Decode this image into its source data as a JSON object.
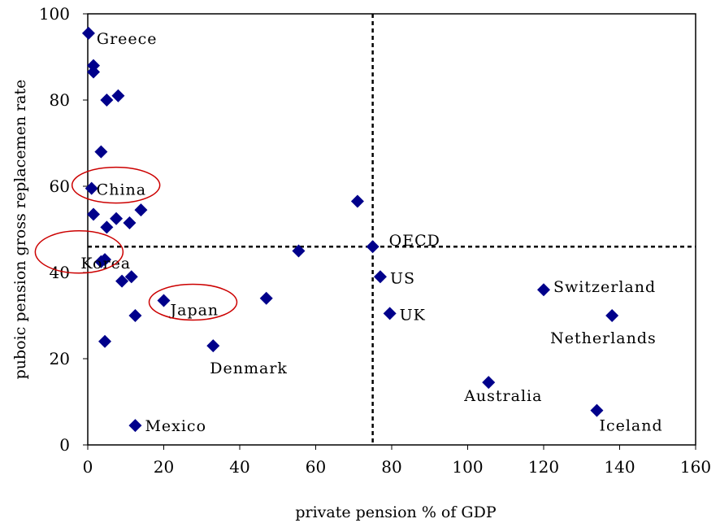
{
  "chart_data": {
    "type": "scatter",
    "title": "",
    "xlabel": "private pension % of GDP",
    "ylabel": "puboic pension gross replacemen rate",
    "xlim": [
      0,
      160
    ],
    "ylim": [
      0,
      100
    ],
    "xticks": [
      0,
      20,
      40,
      60,
      80,
      100,
      120,
      140,
      160
    ],
    "yticks": [
      0,
      20,
      40,
      60,
      80,
      100
    ],
    "grid": false,
    "reference_lines": {
      "x": 75,
      "y": 46,
      "style": "dashed"
    },
    "marker_color": "#00008b",
    "highlight_color": "#cc0000",
    "highlighted": [
      "China",
      "Korea",
      "Japan"
    ],
    "points": [
      {
        "x": 0.2,
        "y": 95.5,
        "label": "Greece"
      },
      {
        "x": 1.5,
        "y": 88,
        "label": ""
      },
      {
        "x": 1.5,
        "y": 86.5,
        "label": ""
      },
      {
        "x": 5,
        "y": 80,
        "label": ""
      },
      {
        "x": 8,
        "y": 81,
        "label": ""
      },
      {
        "x": 3.5,
        "y": 68,
        "label": ""
      },
      {
        "x": 1,
        "y": 59.5,
        "label": "China"
      },
      {
        "x": 1.5,
        "y": 53.5,
        "label": ""
      },
      {
        "x": 7.5,
        "y": 52.5,
        "label": ""
      },
      {
        "x": 14,
        "y": 54.5,
        "label": ""
      },
      {
        "x": 5,
        "y": 50.5,
        "label": ""
      },
      {
        "x": 11,
        "y": 51.5,
        "label": ""
      },
      {
        "x": 3.5,
        "y": 42.5,
        "label": "Korea"
      },
      {
        "x": 4.5,
        "y": 43,
        "label": ""
      },
      {
        "x": 9,
        "y": 38,
        "label": ""
      },
      {
        "x": 11.5,
        "y": 39,
        "label": ""
      },
      {
        "x": 20,
        "y": 33.5,
        "label": "Japan"
      },
      {
        "x": 12.5,
        "y": 30,
        "label": ""
      },
      {
        "x": 4.5,
        "y": 24,
        "label": ""
      },
      {
        "x": 12.5,
        "y": 4.5,
        "label": "Mexico"
      },
      {
        "x": 33,
        "y": 23,
        "label": "Denmark"
      },
      {
        "x": 47,
        "y": 34,
        "label": ""
      },
      {
        "x": 55.5,
        "y": 45,
        "label": ""
      },
      {
        "x": 71,
        "y": 56.5,
        "label": ""
      },
      {
        "x": 75,
        "y": 46,
        "label": "OECD"
      },
      {
        "x": 77,
        "y": 39,
        "label": "US"
      },
      {
        "x": 79.5,
        "y": 30.5,
        "label": "UK"
      },
      {
        "x": 105.5,
        "y": 14.5,
        "label": "Australia"
      },
      {
        "x": 120,
        "y": 36,
        "label": "Switzerland"
      },
      {
        "x": 138,
        "y": 30,
        "label": "Netherlands"
      },
      {
        "x": 134,
        "y": 8,
        "label": "Iceland"
      }
    ]
  }
}
